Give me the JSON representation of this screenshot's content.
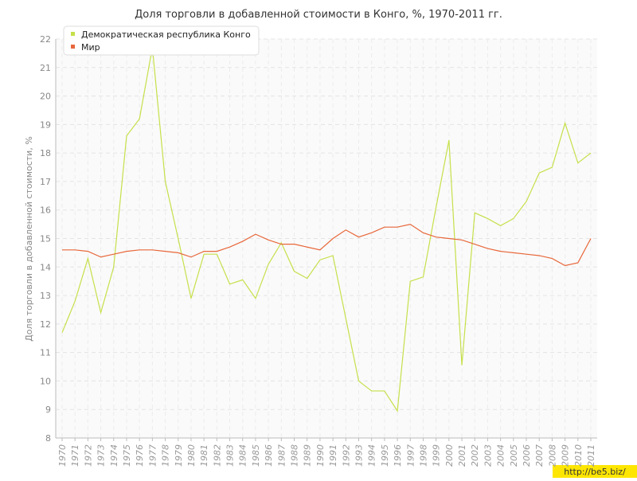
{
  "chart_data": {
    "type": "line",
    "title": "Доля торговли в добавленной стоимости в Конго, %, 1970-2011 гг.",
    "y_label": "Доля торговли в добавленной стоимости, %",
    "categories": [
      "1970",
      "1971",
      "1972",
      "1973",
      "1974",
      "1975",
      "1976",
      "1977",
      "1978",
      "1979",
      "1980",
      "1981",
      "1982",
      "1983",
      "1984",
      "1985",
      "1986",
      "1987",
      "1988",
      "1989",
      "1990",
      "1991",
      "1992",
      "1993",
      "1994",
      "1995",
      "1996",
      "1997",
      "1998",
      "1999",
      "2000",
      "2001",
      "2002",
      "2003",
      "2004",
      "2005",
      "2006",
      "2007",
      "2008",
      "2009",
      "2010",
      "2011"
    ],
    "series": [
      {
        "name": "Демократическая республика Конго",
        "color": "#c5e04a",
        "values": [
          11.7,
          12.8,
          14.3,
          12.4,
          14.0,
          18.6,
          19.2,
          21.7,
          17.0,
          15.0,
          12.9,
          14.45,
          14.45,
          13.4,
          13.55,
          12.9,
          14.1,
          14.85,
          13.85,
          13.6,
          14.25,
          14.4,
          12.2,
          10.0,
          9.65,
          9.65,
          8.95,
          13.5,
          13.65,
          16.1,
          18.45,
          10.55,
          15.9,
          15.7,
          15.45,
          15.7,
          16.3,
          17.3,
          17.5,
          19.05,
          17.65,
          18.0
        ]
      },
      {
        "name": "Мир",
        "color": "#e8673a",
        "values": [
          14.6,
          14.6,
          14.55,
          14.35,
          14.45,
          14.55,
          14.6,
          14.6,
          14.55,
          14.5,
          14.35,
          14.55,
          14.55,
          14.7,
          14.9,
          15.15,
          14.95,
          14.8,
          14.8,
          14.7,
          14.6,
          15.0,
          15.3,
          15.05,
          15.2,
          15.4,
          15.4,
          15.5,
          15.2,
          15.05,
          15.0,
          14.95,
          14.8,
          14.65,
          14.55,
          14.5,
          14.45,
          14.4,
          14.3,
          14.05,
          14.15,
          15.0
        ]
      }
    ],
    "ylim": [
      8,
      22
    ],
    "yticks": [
      8,
      9,
      10,
      11,
      12,
      13,
      14,
      15,
      16,
      17,
      18,
      19,
      20,
      21,
      22
    ],
    "grid": true,
    "legend": "top-left",
    "watermark": "http://be5.biz/"
  }
}
